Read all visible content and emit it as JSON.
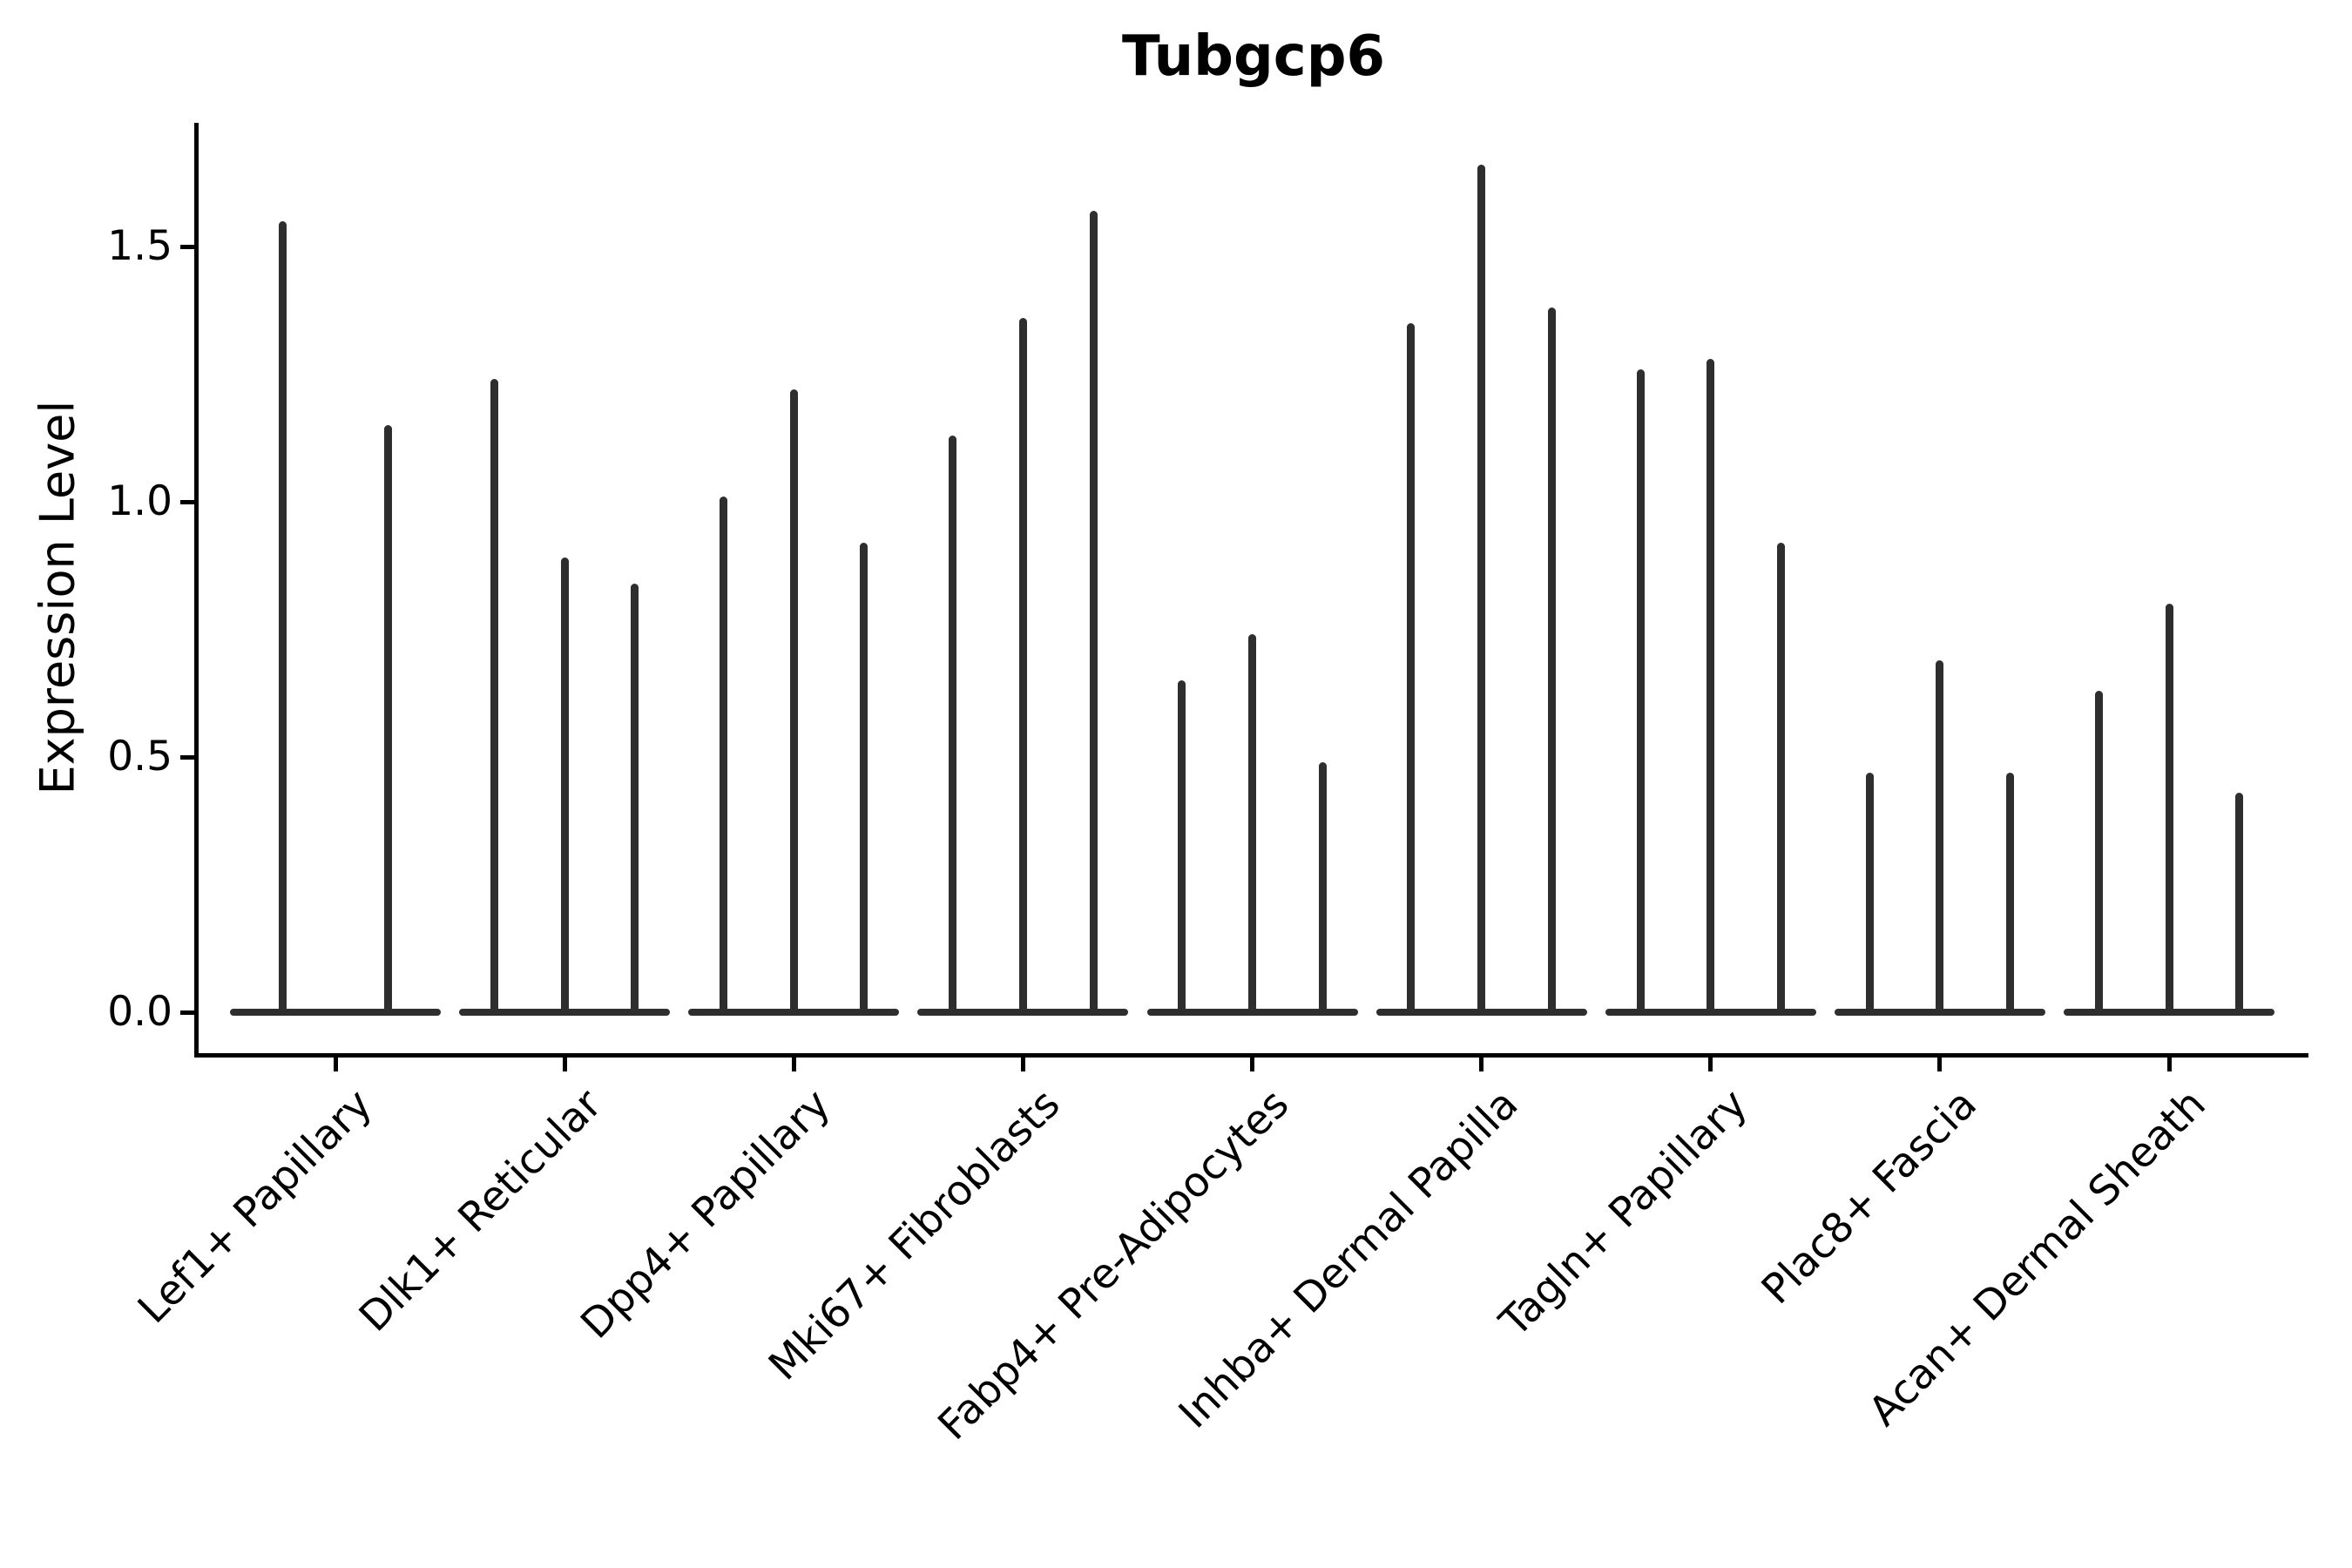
{
  "chart_data": {
    "type": "violin",
    "title": "Tubgcp6",
    "ylabel": "Expression Level",
    "xlabel": "",
    "yticks": [
      "0.0",
      "0.5",
      "1.0",
      "1.5"
    ],
    "ylim": [
      -0.08,
      1.74
    ],
    "grid": false,
    "legend": "none",
    "x_tick_rotation": 45,
    "categories": [
      "Lef1+ Papillary",
      "Dlk1+ Reticular",
      "Dpp4+ Papillary",
      "Mki67+ Fibroblasts",
      "Fabp4+ Pre-Adipocytes",
      "Inhba+ Dermal Papilla",
      "Tagln+ Papillary",
      "Plac8+ Fascia",
      "Acan+ Dermal Sheath"
    ],
    "series": [
      {
        "category": "Lef1+ Papillary",
        "violin_peak_values": [
          1.55,
          1.15
        ]
      },
      {
        "category": "Dlk1+ Reticular",
        "violin_peak_values": [
          1.24,
          0.89,
          0.84
        ]
      },
      {
        "category": "Dpp4+ Papillary",
        "violin_peak_values": [
          1.01,
          1.22,
          0.92
        ]
      },
      {
        "category": "Mki67+ Fibroblasts",
        "violin_peak_values": [
          1.13,
          1.36,
          1.57
        ]
      },
      {
        "category": "Fabp4+ Pre-Adipocytes",
        "violin_peak_values": [
          0.65,
          0.74,
          0.49
        ]
      },
      {
        "category": "Inhba+ Dermal Papilla",
        "violin_peak_values": [
          1.35,
          1.66,
          1.38
        ]
      },
      {
        "category": "Tagln+ Papillary",
        "violin_peak_values": [
          1.26,
          1.28,
          0.92
        ]
      },
      {
        "category": "Plac8+ Fascia",
        "violin_peak_values": [
          0.47,
          0.69,
          0.47
        ]
      },
      {
        "category": "Acan+ Dermal Sheath",
        "violin_peak_values": [
          0.63,
          0.8,
          0.43
        ]
      }
    ],
    "style": {
      "violin_color": "#2e2e2e",
      "axis_color": "#000000",
      "background": "#ffffff",
      "violin_shape": "needle-thin density spikes rising from a flat violin base at expression 0"
    }
  }
}
